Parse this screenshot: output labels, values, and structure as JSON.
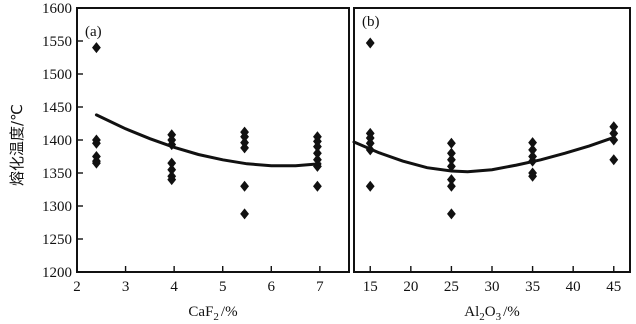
{
  "chart_data": [
    {
      "type": "scatter",
      "panel_label": "(a)",
      "xlabel_base": "CaF",
      "xlabel_sub": "2",
      "xlabel_unit": "/%",
      "ylabel": "熔化温度/℃",
      "xlim": [
        2,
        7.6
      ],
      "ylim": [
        1200,
        1600
      ],
      "xticks": [
        2,
        3,
        4,
        5,
        6,
        7
      ],
      "yticks": [
        1200,
        1250,
        1300,
        1350,
        1400,
        1450,
        1500,
        1550,
        1600
      ],
      "points": [
        {
          "x": 2.4,
          "y": 1540
        },
        {
          "x": 2.4,
          "y": 1400
        },
        {
          "x": 2.4,
          "y": 1395
        },
        {
          "x": 2.4,
          "y": 1375
        },
        {
          "x": 2.4,
          "y": 1368
        },
        {
          "x": 2.4,
          "y": 1365
        },
        {
          "x": 3.95,
          "y": 1408
        },
        {
          "x": 3.95,
          "y": 1400
        },
        {
          "x": 3.95,
          "y": 1393
        },
        {
          "x": 3.95,
          "y": 1365
        },
        {
          "x": 3.95,
          "y": 1355
        },
        {
          "x": 3.95,
          "y": 1345
        },
        {
          "x": 3.95,
          "y": 1340
        },
        {
          "x": 5.45,
          "y": 1412
        },
        {
          "x": 5.45,
          "y": 1405
        },
        {
          "x": 5.45,
          "y": 1396
        },
        {
          "x": 5.45,
          "y": 1388
        },
        {
          "x": 5.45,
          "y": 1330
        },
        {
          "x": 5.45,
          "y": 1288
        },
        {
          "x": 6.95,
          "y": 1405
        },
        {
          "x": 6.95,
          "y": 1398
        },
        {
          "x": 6.95,
          "y": 1390
        },
        {
          "x": 6.95,
          "y": 1380
        },
        {
          "x": 6.95,
          "y": 1370
        },
        {
          "x": 6.95,
          "y": 1360
        },
        {
          "x": 6.95,
          "y": 1330
        }
      ],
      "fit_curve": {
        "x": [
          2.4,
          3.0,
          3.5,
          4.0,
          4.5,
          5.0,
          5.5,
          6.0,
          6.5,
          7.0
        ],
        "y": [
          1438,
          1417,
          1402,
          1389,
          1378,
          1370,
          1364,
          1361,
          1361,
          1364
        ]
      }
    },
    {
      "type": "scatter",
      "panel_label": "(b)",
      "xlabel_base": "Al",
      "xlabel_sub1": "2",
      "xlabel_mid": "O",
      "xlabel_sub2": "3",
      "xlabel_unit": "/%",
      "xlim": [
        13,
        47
      ],
      "ylim": [
        1200,
        1600
      ],
      "xticks": [
        15,
        20,
        25,
        30,
        35,
        40,
        45
      ],
      "points": [
        {
          "x": 15,
          "y": 1547
        },
        {
          "x": 15,
          "y": 1410
        },
        {
          "x": 15,
          "y": 1403
        },
        {
          "x": 15,
          "y": 1395
        },
        {
          "x": 15,
          "y": 1385
        },
        {
          "x": 15,
          "y": 1330
        },
        {
          "x": 25,
          "y": 1395
        },
        {
          "x": 25,
          "y": 1380
        },
        {
          "x": 25,
          "y": 1370
        },
        {
          "x": 25,
          "y": 1360
        },
        {
          "x": 25,
          "y": 1340
        },
        {
          "x": 25,
          "y": 1330
        },
        {
          "x": 25,
          "y": 1288
        },
        {
          "x": 35,
          "y": 1396
        },
        {
          "x": 35,
          "y": 1385
        },
        {
          "x": 35,
          "y": 1375
        },
        {
          "x": 35,
          "y": 1368
        },
        {
          "x": 35,
          "y": 1350
        },
        {
          "x": 35,
          "y": 1345
        },
        {
          "x": 45,
          "y": 1420
        },
        {
          "x": 45,
          "y": 1410
        },
        {
          "x": 45,
          "y": 1400
        },
        {
          "x": 45,
          "y": 1370
        }
      ],
      "fit_curve": {
        "x": [
          13,
          16,
          19,
          22,
          25,
          27,
          30,
          33,
          36,
          39,
          42,
          45
        ],
        "y": [
          1397,
          1381,
          1368,
          1358,
          1353,
          1352,
          1355,
          1362,
          1370,
          1380,
          1391,
          1404
        ]
      }
    }
  ]
}
